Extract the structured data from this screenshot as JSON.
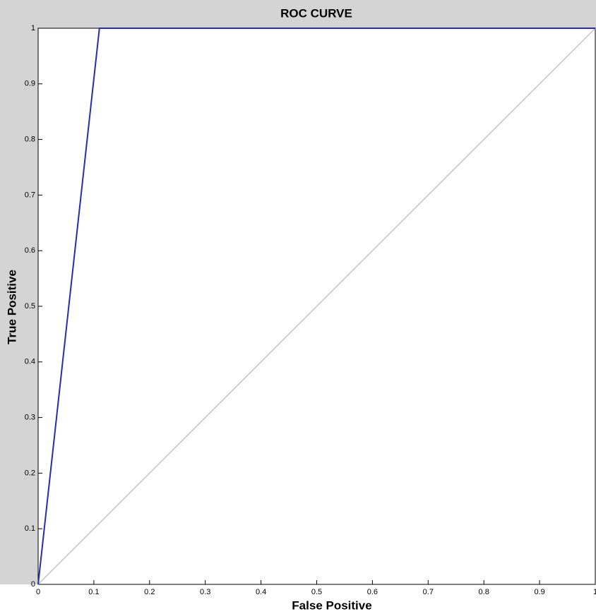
{
  "chart_data": {
    "type": "line",
    "title": "ROC CURVE",
    "x_label": "False Positive",
    "y_label": "True Positive",
    "series": [
      {
        "color": "#2b2bb0",
        "x": [
          0,
          0.11,
          1
        ],
        "values": [
          0,
          1,
          1
        ]
      },
      {
        "color": "#c4c4c4",
        "x": [
          0,
          1
        ],
        "values": [
          0,
          1
        ]
      }
    ],
    "xlim": [
      0,
      1
    ],
    "ylim": [
      0,
      1
    ],
    "xticks": [
      0,
      0.1,
      0.2,
      0.3,
      0.4,
      0.5,
      0.6,
      0.7,
      0.8,
      0.9,
      1
    ],
    "yticks": [
      0,
      0.1,
      0.2,
      0.3,
      0.4,
      0.5,
      0.6,
      0.7,
      0.8,
      0.9,
      1
    ],
    "grid": false
  }
}
